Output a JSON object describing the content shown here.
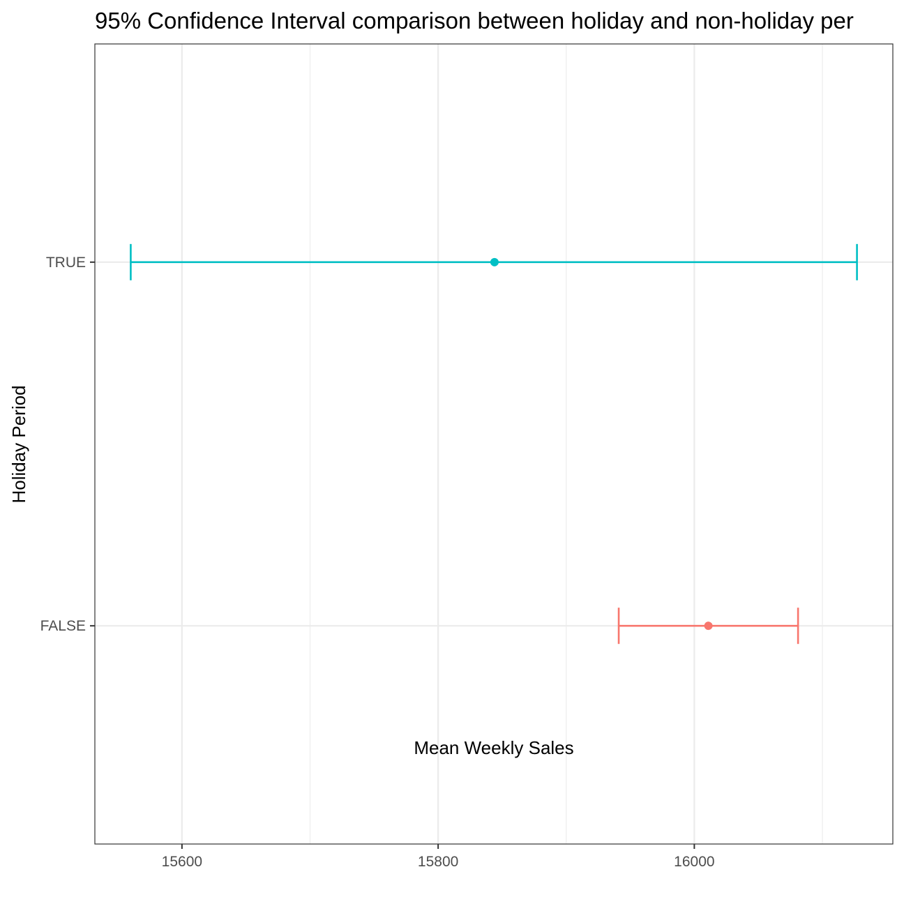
{
  "chart_data": {
    "type": "errorbar",
    "title": "95% Confidence Interval comparison between holiday and non-holiday per",
    "xlabel": "Mean Weekly Sales",
    "ylabel": "Holiday Period",
    "xlim": [
      15532,
      16155
    ],
    "x_ticks": [
      15600,
      15800,
      16000
    ],
    "x_minor_ticks": [
      15700,
      15900,
      16100
    ],
    "categories": [
      "FALSE",
      "TRUE"
    ],
    "grid": true,
    "series": [
      {
        "category": "FALSE",
        "mean": 16011,
        "lower": 15941,
        "upper": 16081,
        "color": "#f8766d"
      },
      {
        "category": "TRUE",
        "mean": 15844,
        "lower": 15560,
        "upper": 16127,
        "color": "#00bfc4"
      }
    ]
  }
}
